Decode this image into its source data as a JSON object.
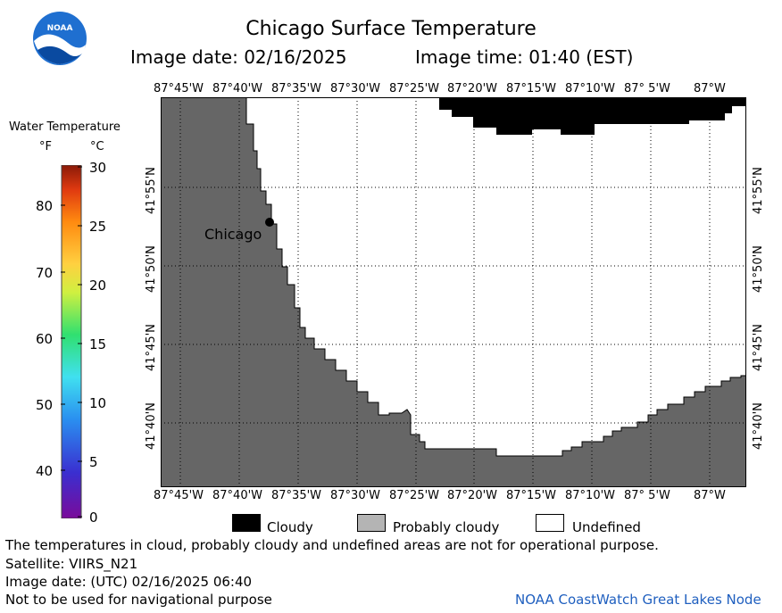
{
  "header": {
    "title": "Chicago Surface Temperature",
    "date_label": "Image date: 02/16/2025",
    "time_label": "Image time: 01:40 (EST)",
    "logo_text": "NOAA"
  },
  "colorbar": {
    "title": "Water Temperature",
    "unit_f": "°F",
    "unit_c": "°C",
    "f_ticks": [
      "80",
      "70",
      "60",
      "50",
      "40"
    ],
    "c_ticks": [
      "30",
      "25",
      "20",
      "15",
      "10",
      "5",
      "0"
    ]
  },
  "map": {
    "lon_labels": [
      "87°45'W",
      "87°40'W",
      "87°35'W",
      "87°30'W",
      "87°25'W",
      "87°20'W",
      "87°15'W",
      "87°10'W",
      "87° 5'W",
      "87°W"
    ],
    "lat_labels": [
      "41°55'N",
      "41°50'N",
      "41°45'N",
      "41°40'N"
    ],
    "city_label": "Chicago",
    "land_color": "#666666",
    "cloud_color": "#000000",
    "water_color": "#ffffff"
  },
  "legend": {
    "cloudy": "Cloudy",
    "probably_cloudy": "Probably cloudy",
    "undefined": "Undefined",
    "cloudy_color": "#000000",
    "probably_cloudy_color": "#b4b4b4",
    "undefined_color": "#ffffff"
  },
  "footer": {
    "line1": "The temperatures in cloud, probably cloudy and undefined areas are not for operational purpose.",
    "line2": "Satellite: VIIRS_N21",
    "line3": "Image date: (UTC) 02/16/2025  06:40",
    "line4": "Not to be used for navigational purpose",
    "credit": "NOAA CoastWatch Great Lakes Node",
    "credit_color": "#1f5fbf"
  }
}
